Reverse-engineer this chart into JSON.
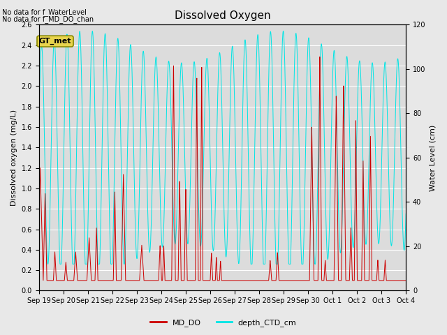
{
  "title": "Dissolved Oxygen",
  "ylabel_left": "Dissolved oxygen (mg/L)",
  "ylabel_right": "Water Level (cm)",
  "annotation_lines": [
    "No data for f_WaterLevel",
    "No data for f_MD_DO_chan"
  ],
  "legend_box_label": "GT_met",
  "legend_entries": [
    "MD_DO",
    "depth_CTD_cm"
  ],
  "ylim_left": [
    0.0,
    2.6
  ],
  "ylim_right": [
    0,
    120
  ],
  "yticks_left": [
    0.0,
    0.2,
    0.4,
    0.6,
    0.8,
    1.0,
    1.2,
    1.4,
    1.6,
    1.8,
    2.0,
    2.2,
    2.4,
    2.6
  ],
  "yticks_right": [
    0,
    20,
    40,
    60,
    80,
    100,
    120
  ],
  "background_color": "#e8e8e8",
  "plot_bg_color": "#dcdcdc",
  "xtick_labels": [
    "Sep 19",
    "Sep 20",
    "Sep 21",
    "Sep 22",
    "Sep 23",
    "Sep 24",
    "Sep 25",
    "Sep 26",
    "Sep 27",
    "Sep 28",
    "Sep 29",
    "Sep 30",
    "Oct 1",
    "Oct 2",
    "Oct 3",
    "Oct 4"
  ],
  "md_do_color": "#cc0000",
  "ctd_color": "#00e5e5",
  "title_fontsize": 11,
  "axis_label_fontsize": 8,
  "tick_fontsize": 7,
  "annot_fontsize": 7,
  "legend_fontsize": 8
}
